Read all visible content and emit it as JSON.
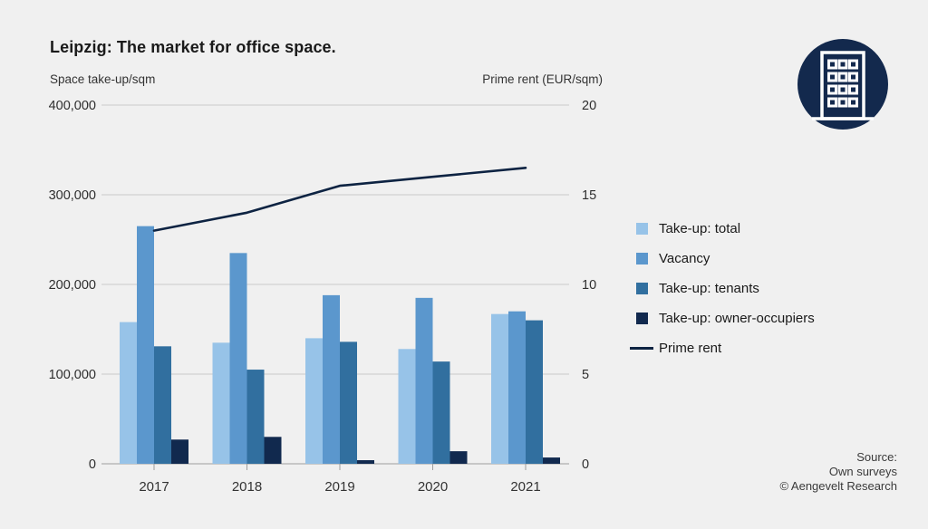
{
  "title": "Leipzig: The market for office space.",
  "chart_data": {
    "type": "bar+line",
    "title": "Leipzig: The market for office space.",
    "categories": [
      "2017",
      "2018",
      "2019",
      "2020",
      "2021"
    ],
    "series": [
      {
        "name": "Take-up: total",
        "type": "bar",
        "axis": "left",
        "color": "#97c3e8",
        "values": [
          158000,
          135000,
          140000,
          128000,
          167000
        ]
      },
      {
        "name": "Vacancy",
        "type": "bar",
        "axis": "left",
        "color": "#5b97cd",
        "values": [
          265000,
          235000,
          188000,
          185000,
          170000
        ]
      },
      {
        "name": "Take-up: tenants",
        "type": "bar",
        "axis": "left",
        "color": "#316f9f",
        "values": [
          131000,
          105000,
          136000,
          114000,
          160000
        ]
      },
      {
        "name": "Take-up: owner-occupiers",
        "type": "bar",
        "axis": "left",
        "color": "#11294e",
        "values": [
          27000,
          30000,
          4000,
          14000,
          7000
        ]
      },
      {
        "name": "Prime rent",
        "type": "line",
        "axis": "right",
        "color": "#0d2342",
        "values": [
          13.0,
          14.0,
          15.5,
          16.0,
          16.5
        ]
      }
    ],
    "left_axis": {
      "label": "Space take-up/sqm",
      "max": 400000,
      "ticks": [
        400000,
        300000,
        200000,
        100000,
        0
      ],
      "tick_labels": [
        "400,000",
        "300,000",
        "200,000",
        "100,000",
        "0"
      ]
    },
    "right_axis": {
      "label": "Prime rent (EUR/sqm)",
      "max": 20,
      "ticks": [
        20,
        15,
        10,
        5,
        0
      ],
      "tick_labels": [
        "20",
        "15",
        "10",
        "5",
        "0"
      ]
    },
    "grid": true,
    "legend_position": "right"
  },
  "source": {
    "line1": "Source:",
    "line2": "Own surveys",
    "line3": "© Aengevelt Research"
  },
  "logo": {
    "icon": "building-icon",
    "background": "#13294d",
    "foreground": "#ffffff"
  },
  "page": {
    "background": "#f0f0f0"
  }
}
